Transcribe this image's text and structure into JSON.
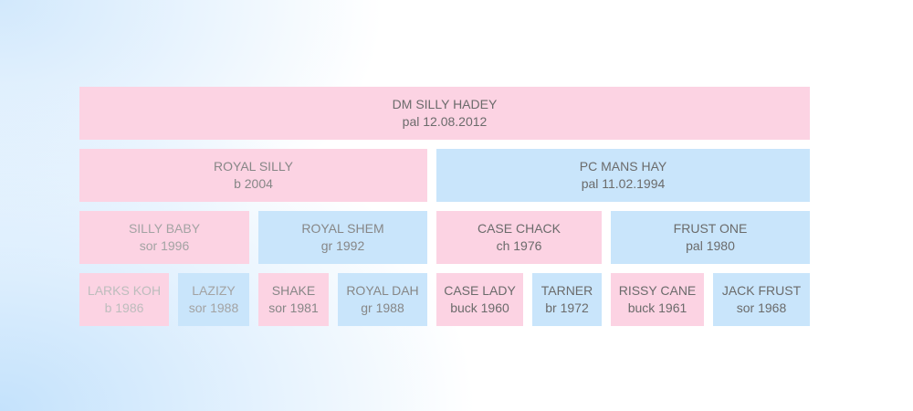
{
  "pedigree": {
    "gen0": {
      "name": "DM SILLY HADEY",
      "info": "pal 12.08.2012"
    },
    "gen1": [
      {
        "name": "ROYAL SILLY",
        "info": "b 2004"
      },
      {
        "name": "PC MANS HAY",
        "info": "pal 11.02.1994"
      }
    ],
    "gen2": [
      {
        "name": "SILLY BABY",
        "info": "sor 1996"
      },
      {
        "name": "ROYAL SHEM",
        "info": "gr 1992"
      },
      {
        "name": "CASE CHACK",
        "info": "ch 1976"
      },
      {
        "name": "FRUST ONE",
        "info": "pal 1980"
      }
    ],
    "gen3": [
      {
        "name": "LARKS KOH",
        "info": "b 1986"
      },
      {
        "name": "LAZIZY",
        "info": "sor 1988"
      },
      {
        "name": "SHAKE",
        "info": "sor 1981"
      },
      {
        "name": "ROYAL DAH",
        "info": "gr 1988"
      },
      {
        "name": "CASE LADY",
        "info": "buck 1960"
      },
      {
        "name": "TARNER",
        "info": "br 1972"
      },
      {
        "name": "RISSY CANE",
        "info": "buck 1961"
      },
      {
        "name": "JACK FRUST",
        "info": "sor 1968"
      }
    ]
  },
  "colors": {
    "dam_box": "#fcd3e3",
    "sire_box": "#c9e5fb",
    "text": "#6b6b6b",
    "background_white": "#ffffff",
    "background_blue": "#c4e2fc"
  }
}
